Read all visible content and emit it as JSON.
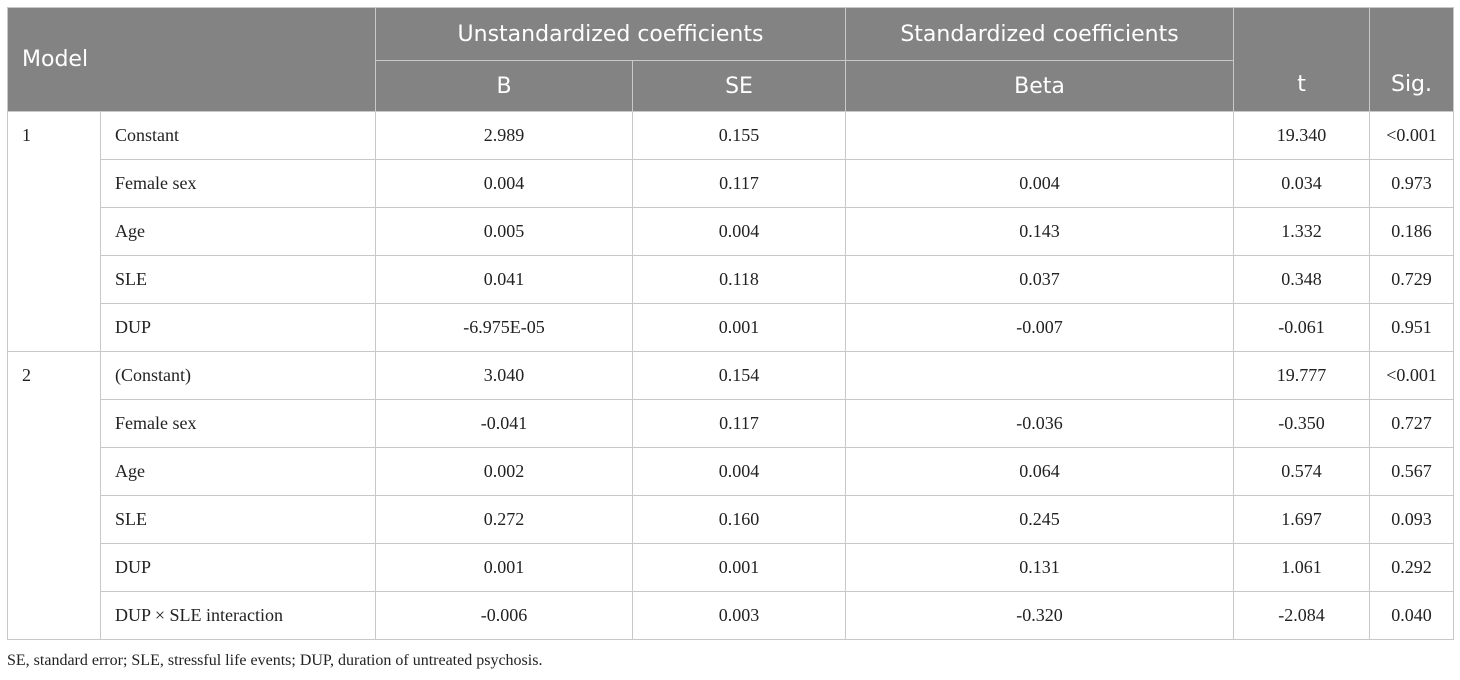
{
  "header": {
    "model": "Model",
    "unstandardized": "Unstandardized coefficients",
    "standardized": "Standardized coefficients",
    "b": "B",
    "se": "SE",
    "beta": "Beta",
    "t": "t",
    "sig": "Sig."
  },
  "models": [
    {
      "id": "1",
      "rows": [
        {
          "var": "Constant",
          "b": "2.989",
          "se": "0.155",
          "beta": "",
          "t": "19.340",
          "sig": "<0.001"
        },
        {
          "var": "Female sex",
          "b": "0.004",
          "se": "0.117",
          "beta": "0.004",
          "t": "0.034",
          "sig": "0.973"
        },
        {
          "var": "Age",
          "b": "0.005",
          "se": "0.004",
          "beta": "0.143",
          "t": "1.332",
          "sig": "0.186"
        },
        {
          "var": "SLE",
          "b": "0.041",
          "se": "0.118",
          "beta": "0.037",
          "t": "0.348",
          "sig": "0.729"
        },
        {
          "var": "DUP",
          "b": "-6.975E-05",
          "se": "0.001",
          "beta": "-0.007",
          "t": "-0.061",
          "sig": "0.951"
        }
      ]
    },
    {
      "id": "2",
      "rows": [
        {
          "var": "(Constant)",
          "b": "3.040",
          "se": "0.154",
          "beta": "",
          "t": "19.777",
          "sig": "<0.001"
        },
        {
          "var": "Female sex",
          "b": "-0.041",
          "se": "0.117",
          "beta": "-0.036",
          "t": "-0.350",
          "sig": "0.727"
        },
        {
          "var": "Age",
          "b": "0.002",
          "se": "0.004",
          "beta": "0.064",
          "t": "0.574",
          "sig": "0.567"
        },
        {
          "var": "SLE",
          "b": "0.272",
          "se": "0.160",
          "beta": "0.245",
          "t": "1.697",
          "sig": "0.093"
        },
        {
          "var": "DUP",
          "b": "0.001",
          "se": "0.001",
          "beta": "0.131",
          "t": "1.061",
          "sig": "0.292"
        },
        {
          "var": "DUP × SLE interaction",
          "b": "-0.006",
          "se": "0.003",
          "beta": "-0.320",
          "t": "-2.084",
          "sig": "0.040"
        }
      ]
    }
  ],
  "footnote": "SE, standard error; SLE, stressful life events; DUP, duration of untreated psychosis.",
  "colors": {
    "header_bg": "#838383",
    "header_text": "#ffffff",
    "border": "#c8c8c8"
  }
}
